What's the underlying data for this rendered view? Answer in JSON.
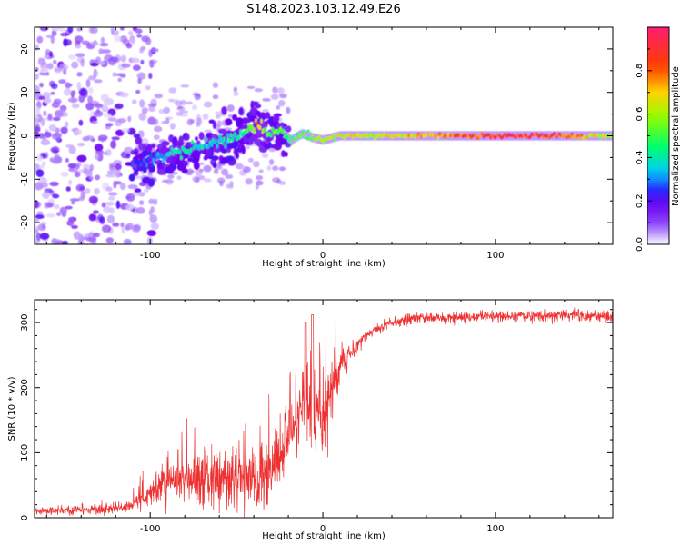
{
  "title": "S148.2023.103.12.49.E26",
  "colors": {
    "axis": "#000000",
    "snr_line": "#ee3030",
    "spectrogram_cmap": [
      "#ffffff",
      "#b08aff",
      "#7f00ff",
      "#3030ff",
      "#00c8ff",
      "#00ff60",
      "#c0ff00",
      "#ffd000",
      "#ff4000",
      "#ff2070"
    ]
  },
  "chart_data": [
    {
      "type": "heatmap",
      "title": "S148.2023.103.12.49.E26",
      "xlabel": "Height of straight line (km)",
      "ylabel": "Frequency (Hz)",
      "xlim": [
        -167,
        168
      ],
      "ylim": [
        -25,
        25
      ],
      "x_ticks": [
        -100,
        0,
        100
      ],
      "y_ticks": [
        -20,
        -10,
        0,
        10,
        20
      ],
      "colorbar": {
        "label": "Normalized spectral amplitude",
        "range": [
          0,
          1
        ],
        "ticks": [
          "0.0",
          "0.2",
          "0.4",
          "0.6",
          "0.8"
        ],
        "tick_values": [
          0.0,
          0.2,
          0.4,
          0.6,
          0.8
        ]
      },
      "ridge": {
        "x": [
          -105,
          -95,
          -85,
          -75,
          -65,
          -55,
          -45,
          -38,
          -32,
          -25,
          -18,
          -12,
          -5,
          0,
          10,
          30,
          60,
          100,
          140,
          168
        ],
        "frequency": [
          -6,
          -5,
          -4,
          -3,
          -2,
          -1,
          1,
          2.5,
          0.5,
          1,
          -1,
          0.5,
          -0.5,
          -1,
          0,
          0,
          0,
          0,
          0,
          0
        ],
        "amplitude": [
          0.25,
          0.3,
          0.4,
          0.4,
          0.35,
          0.4,
          0.45,
          0.75,
          0.5,
          0.5,
          0.45,
          0.5,
          0.55,
          0.6,
          0.65,
          0.65,
          0.72,
          0.9,
          0.85,
          0.55
        ]
      }
    },
    {
      "type": "line",
      "xlabel": "Height of straight line (km)",
      "ylabel": "SNR (10 * v/v)",
      "xlim": [
        -167,
        168
      ],
      "ylim": [
        0,
        335
      ],
      "x_ticks": [
        -100,
        0,
        100
      ],
      "y_ticks": [
        0,
        100,
        200,
        300
      ],
      "series": [
        {
          "x": [
            -167,
            -150,
            -130,
            -115,
            -105,
            -95,
            -85,
            -75,
            -65,
            -55,
            -45,
            -35,
            -25,
            -15,
            -10,
            -5,
            0,
            5,
            10,
            15,
            20,
            25,
            30,
            40,
            50,
            60,
            80,
            100,
            120,
            140,
            168
          ],
          "values": [
            10,
            11,
            12,
            15,
            30,
            45,
            60,
            58,
            65,
            60,
            55,
            65,
            90,
            150,
            175,
            170,
            145,
            190,
            230,
            250,
            265,
            280,
            290,
            300,
            305,
            307,
            308,
            310,
            310,
            311,
            310
          ],
          "noise": [
            5,
            5,
            6,
            6,
            12,
            20,
            30,
            35,
            40,
            40,
            40,
            40,
            40,
            55,
            60,
            60,
            50,
            35,
            22,
            15,
            10,
            8,
            7,
            7,
            7,
            7,
            7,
            7,
            7,
            7,
            7
          ]
        }
      ]
    }
  ]
}
